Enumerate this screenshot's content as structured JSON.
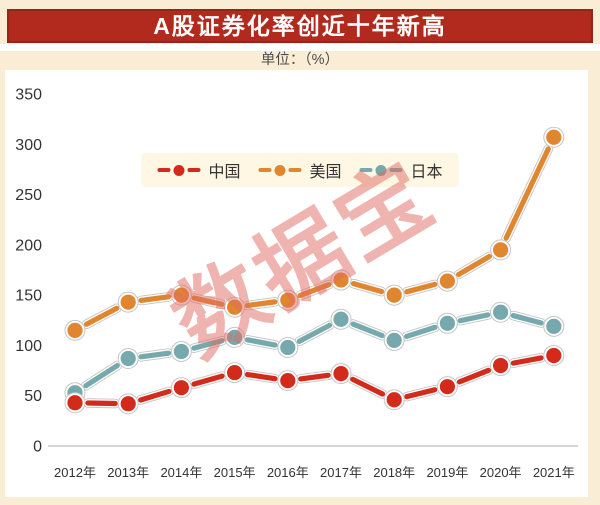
{
  "page": {
    "title": "A股证券化率创近十年新高",
    "subtitle": "单位：（%）",
    "watermark": "数据宝"
  },
  "colors": {
    "banner_bg": "#b2291e",
    "banner_border": "#93261c",
    "page_bg": "#f9edd6",
    "panel_bg": "#ffffff",
    "legend_bg": "#fdf7e3",
    "china": "#d22b1b",
    "usa": "#e0862e",
    "japan": "#76a9ad",
    "axis_line": "#c9c9c9",
    "tick_text": "#333333",
    "halo": "#c5c5c5",
    "watermark": "rgba(224,106,98,0.5)"
  },
  "chart_data": {
    "type": "line",
    "title": "A股证券化率创近十年新高",
    "unit_label": "单位：（%）",
    "categories": [
      "2012年",
      "2013年",
      "2014年",
      "2015年",
      "2016年",
      "2017年",
      "2018年",
      "2019年",
      "2020年",
      "2021年"
    ],
    "series": [
      {
        "name": "中国",
        "color_key": "china",
        "values": [
          43,
          42,
          58,
          73,
          65,
          72,
          46,
          59,
          80,
          90
        ]
      },
      {
        "name": "美国",
        "color_key": "usa",
        "values": [
          115,
          143,
          150,
          138,
          145,
          165,
          150,
          164,
          195,
          307
        ]
      },
      {
        "name": "日本",
        "color_key": "japan",
        "values": [
          53,
          87,
          94,
          108,
          98,
          126,
          105,
          122,
          133,
          119
        ]
      }
    ],
    "ylim": [
      0,
      350
    ],
    "yticks": [
      0,
      50,
      100,
      150,
      200,
      250,
      300,
      350
    ],
    "grid": false,
    "legend_position": "top-center",
    "legend_order": [
      "中国",
      "美国",
      "日本"
    ]
  }
}
